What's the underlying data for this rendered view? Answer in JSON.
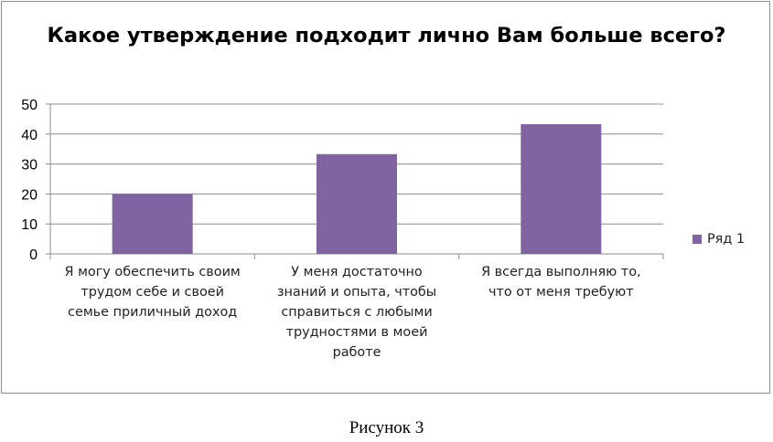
{
  "chart_data": {
    "type": "bar",
    "title": "Какое утверждение подходит лично Вам больше всего?",
    "categories": [
      "Я могу обеспечить своим трудом себе и своей семье приличный доход",
      "У меня достаточно знаний и опыта, чтобы справиться с любыми трудностями в моей работе",
      "Я всегда выполняю то, что от меня требуют"
    ],
    "series": [
      {
        "name": "Ряд 1",
        "values": [
          20,
          33.3,
          43.3
        ],
        "color": "#8064a2"
      }
    ],
    "ylim": [
      0,
      50
    ],
    "yticks": [
      0,
      10,
      20,
      30,
      40,
      50
    ],
    "grid": true,
    "legend_position": "right"
  },
  "caption": "Рисунок 3"
}
